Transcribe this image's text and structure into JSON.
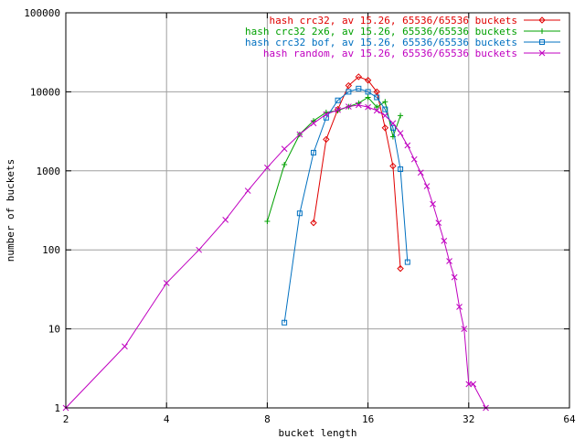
{
  "chart_data": {
    "type": "line",
    "xlabel": "bucket length",
    "ylabel": "number of buckets",
    "xscale": "log2",
    "yscale": "log10",
    "xlim": [
      2,
      64
    ],
    "ylim": [
      1,
      100000
    ],
    "x_ticks": [
      {
        "value": 2,
        "label": "2"
      },
      {
        "value": 4,
        "label": "4"
      },
      {
        "value": 8,
        "label": "8"
      },
      {
        "value": 16,
        "label": "16"
      },
      {
        "value": 32,
        "label": "32"
      },
      {
        "value": 64,
        "label": "64"
      }
    ],
    "y_ticks": [
      {
        "value": 1,
        "label": "1"
      },
      {
        "value": 10,
        "label": "10"
      },
      {
        "value": 100,
        "label": "100"
      },
      {
        "value": 1000,
        "label": "1000"
      },
      {
        "value": 10000,
        "label": "10000"
      },
      {
        "value": 100000,
        "label": "100000"
      }
    ],
    "grid": true,
    "legend_position": "top-right",
    "series": [
      {
        "name": "hash crc32, av 15.26, 65536/65536 buckets",
        "color": "#e00000",
        "marker": "diamond",
        "x": [
          11,
          12,
          13,
          14,
          15,
          16,
          17,
          18,
          19,
          20
        ],
        "y": [
          220,
          2500,
          6000,
          12000,
          15500,
          14000,
          10000,
          3500,
          1150,
          58
        ]
      },
      {
        "name": "hash crc32 2x6, av 15.26, 65536/65536 buckets",
        "color": "#00a000",
        "marker": "plus",
        "x": [
          8,
          9,
          10,
          11,
          12,
          13,
          14,
          15,
          16,
          17,
          18,
          19,
          20
        ],
        "y": [
          230,
          1200,
          2900,
          4300,
          5500,
          5800,
          6500,
          7200,
          8500,
          6400,
          7500,
          2700,
          5000
        ]
      },
      {
        "name": "hash crc32 bof, av 15.26, 65536/65536 buckets",
        "color": "#0070c0",
        "marker": "square",
        "x": [
          9,
          10,
          11,
          12,
          13,
          14,
          15,
          16,
          17,
          18,
          19,
          20,
          21
        ],
        "y": [
          12,
          290,
          1700,
          4700,
          7800,
          10000,
          11000,
          10000,
          8500,
          6000,
          3500,
          1050,
          70
        ]
      },
      {
        "name": "hash random, av 15.26, 65536/65536 buckets",
        "color": "#c000c0",
        "marker": "cross",
        "x": [
          2,
          3,
          4,
          5,
          6,
          7,
          8,
          9,
          10,
          11,
          12,
          13,
          14,
          15,
          16,
          17,
          18,
          19,
          20,
          21,
          22,
          23,
          24,
          25,
          26,
          27,
          28,
          29,
          30,
          31,
          32,
          33,
          36
        ],
        "y": [
          1,
          6,
          38,
          100,
          240,
          560,
          1100,
          1900,
          2900,
          4000,
          5200,
          5900,
          6500,
          6800,
          6400,
          5800,
          5000,
          4000,
          3000,
          2100,
          1400,
          950,
          640,
          380,
          220,
          130,
          72,
          45,
          19,
          10,
          2,
          2,
          1
        ]
      }
    ]
  }
}
